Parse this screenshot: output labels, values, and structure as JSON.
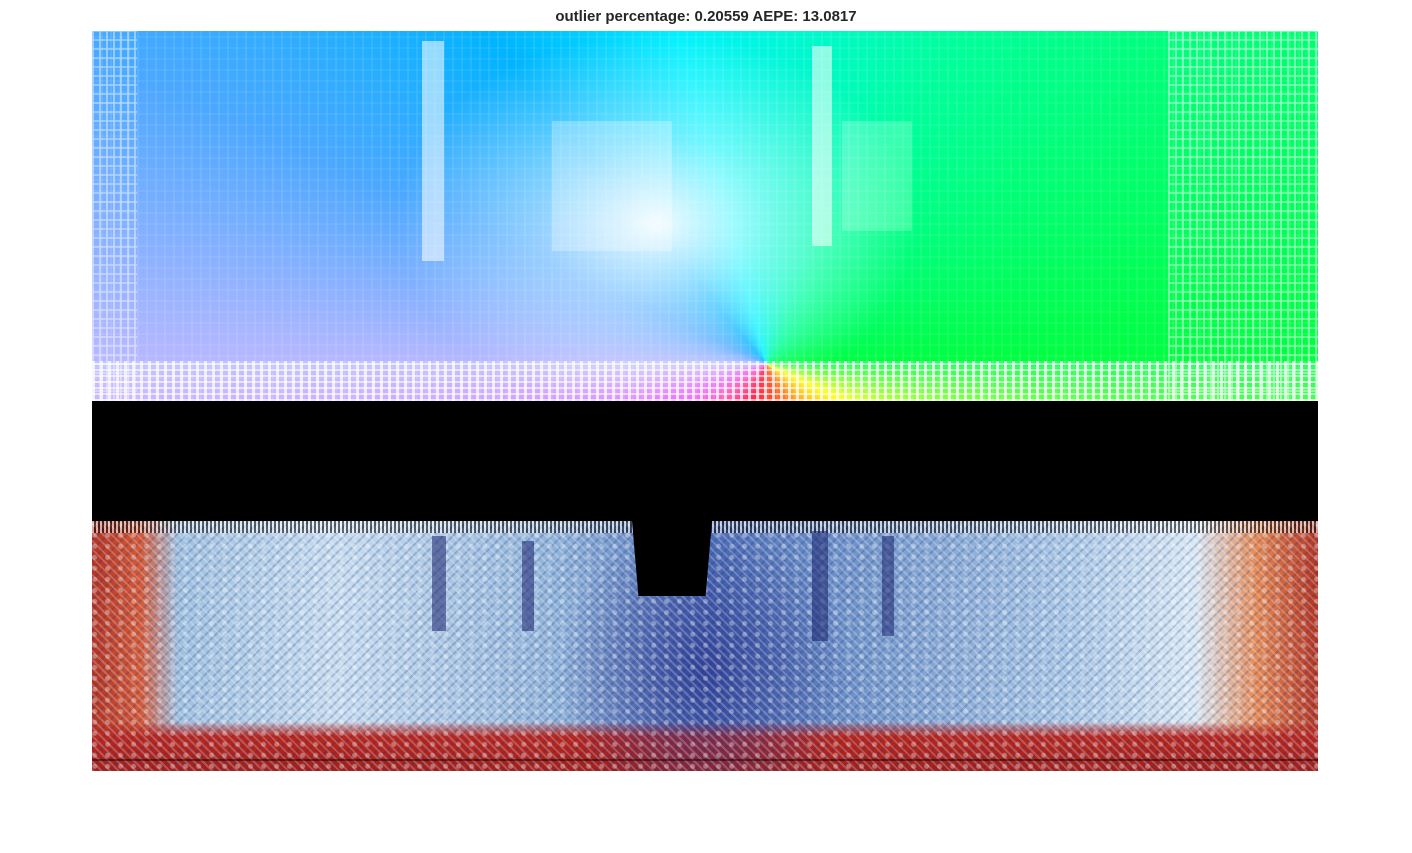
{
  "figure": {
    "title": "outlier percentage: 0.20559 AEPE: 13.0817"
  },
  "panels": {
    "top": "optical-flow-color-map",
    "bottom": "flow-error-map"
  },
  "colors": {
    "background": "#ffffff",
    "title": "#262626",
    "axes_fill": "#000000",
    "error_low": "#2e3f96",
    "error_mid": "#c6dcef",
    "error_high": "#b8261e"
  }
}
